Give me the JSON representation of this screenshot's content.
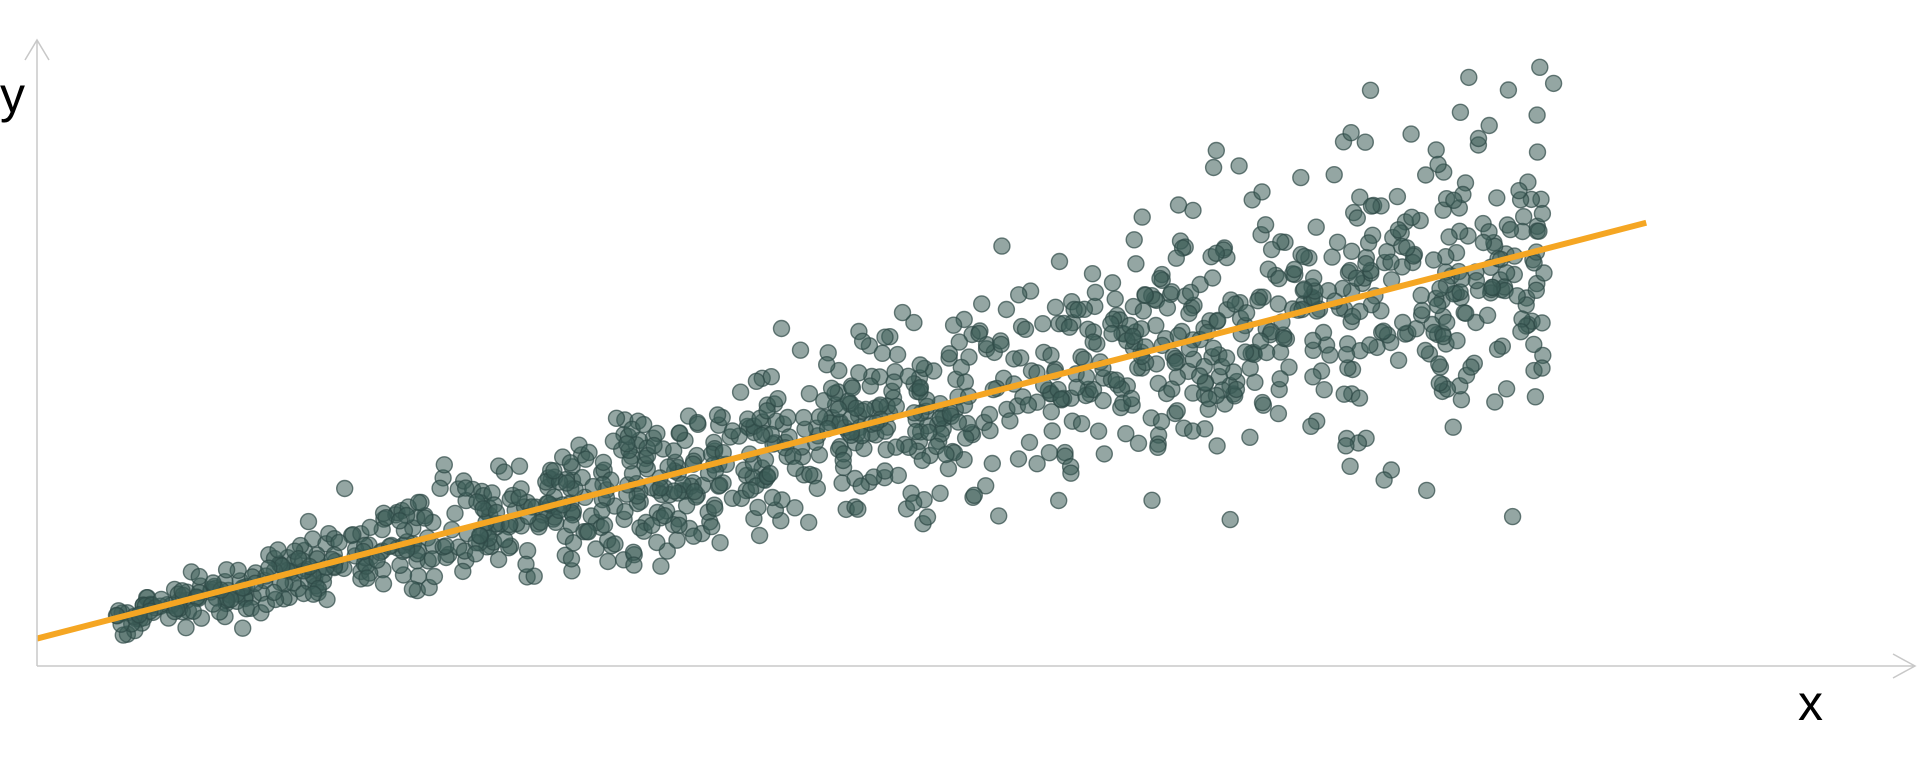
{
  "chart_data": {
    "type": "scatter",
    "title": "",
    "xlabel": "x",
    "ylabel": "y",
    "xlim": [
      0,
      10
    ],
    "ylim": [
      0,
      10
    ],
    "grid": false,
    "legend": "none",
    "colors": {
      "points_fill": "#3c5c58",
      "points_fill_opacity": 0.55,
      "points_stroke": "#2e4946",
      "fit_line": "#f5a623",
      "axis": "#c8c8c8"
    },
    "trend_line": {
      "type": "linear",
      "intercept": 0.45,
      "slope": 0.665,
      "x_range": [
        0,
        10.25
      ]
    },
    "sample_size": 1200,
    "x_range_of_points": [
      0.5,
      9.6
    ],
    "spread_of_residuals": {
      "at_x_min": 0.12,
      "at_x_max": 1.35
    },
    "outliers": [
      {
        "x": 9.12,
        "y": 9.65
      },
      {
        "x": 9.66,
        "y": 9.55
      },
      {
        "x": 1.31,
        "y": 0.62
      },
      {
        "x": 7.6,
        "y": 2.4
      },
      {
        "x": 8.58,
        "y": 3.05
      }
    ]
  }
}
